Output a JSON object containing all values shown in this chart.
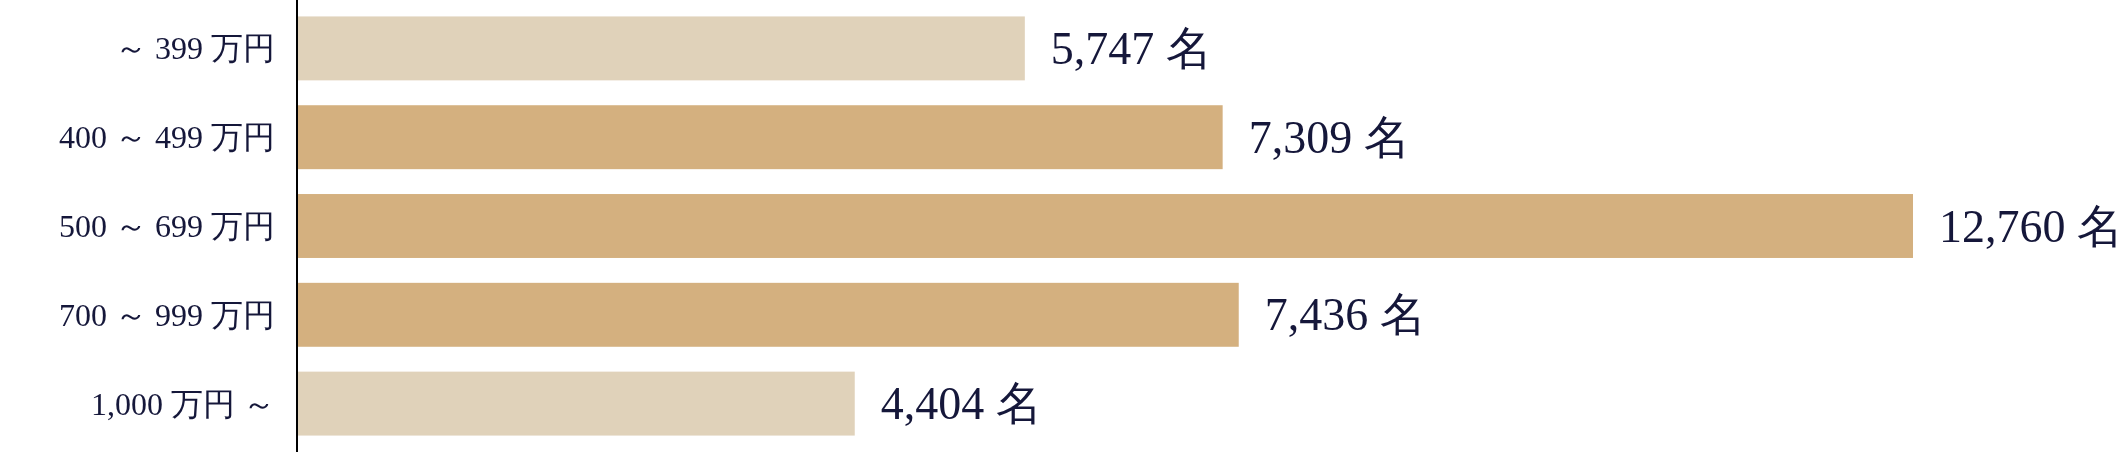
{
  "chart_data": {
    "type": "bar",
    "orientation": "horizontal",
    "categories": [
      "～ 399 万円",
      "400 ～ 499 万円",
      "500 ～ 699 万円",
      "700 ～ 999 万円",
      "1,000 万円 ～"
    ],
    "values": [
      5747,
      7309,
      12760,
      7436,
      4404
    ],
    "value_labels": [
      "5,747 名",
      "7,309 名",
      "12,760 名",
      "7,436 名",
      "4,404 名"
    ],
    "colors": [
      "#e0d2ba",
      "#d4b07f",
      "#d4b07f",
      "#d4b07f",
      "#e0d2ba"
    ],
    "xlim": [
      0,
      12760
    ],
    "tick_labels": "y"
  }
}
